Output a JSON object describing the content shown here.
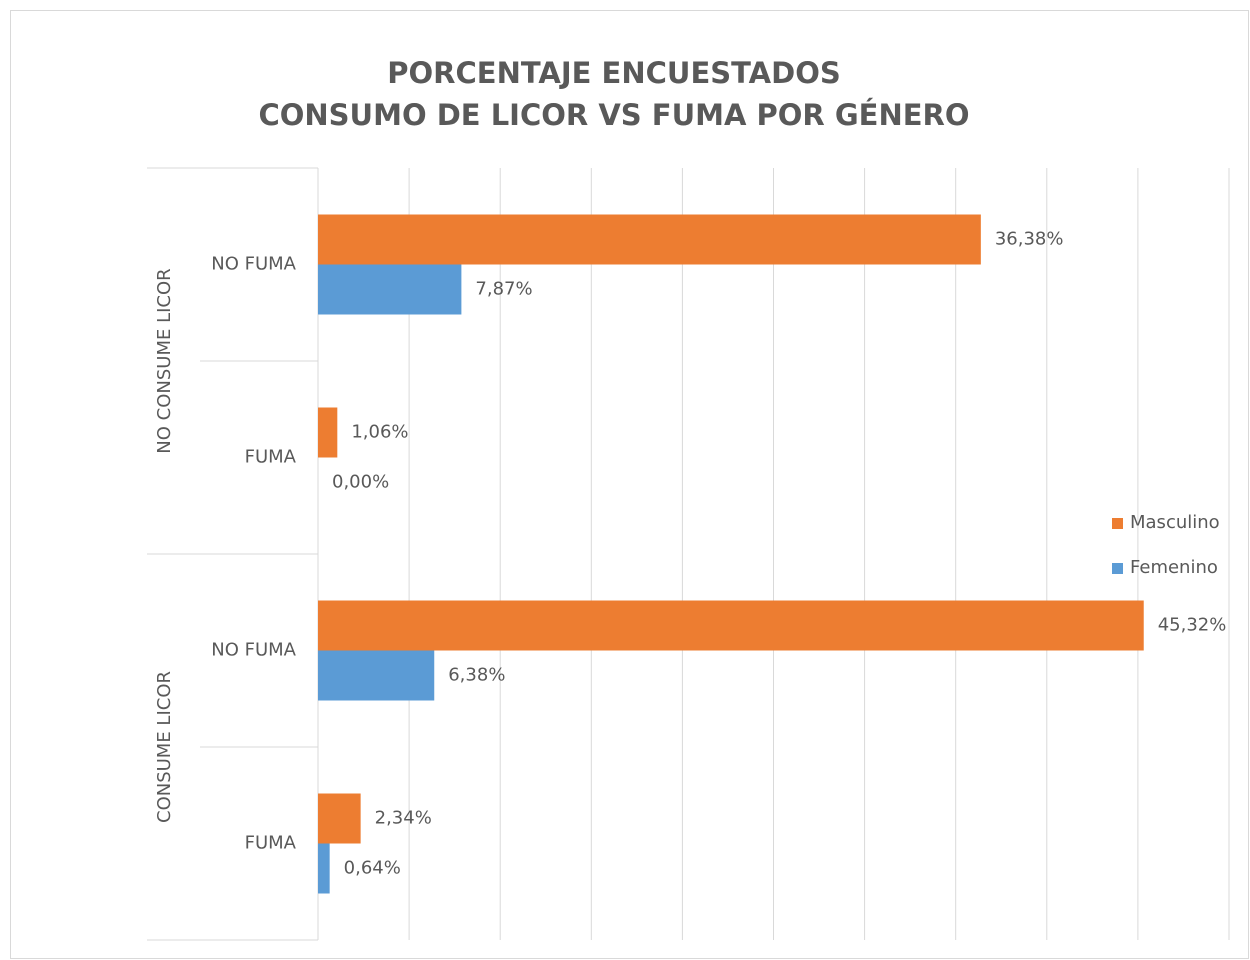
{
  "chart_data": {
    "type": "hbar",
    "title": [
      "PORCENTAJE ENCUESTADOS",
      "CONSUMO DE LICOR VS FUMA POR GÉNERO"
    ],
    "groups": [
      "NO CONSUME LICOR",
      "CONSUME LICOR"
    ],
    "categories": [
      "NO FUMA",
      "FUMA",
      "NO FUMA",
      "FUMA"
    ],
    "series": [
      {
        "name": "Masculino",
        "color": "#ed7d31",
        "values": [
          36.38,
          1.06,
          45.32,
          2.34
        ],
        "value_labels": [
          "36,38%",
          "1,06%",
          "45,32%",
          "2,34%"
        ]
      },
      {
        "name": "Femenino",
        "color": "#5b9bd5",
        "values": [
          7.87,
          0,
          6.38,
          0.64
        ],
        "value_labels": [
          "7,87%",
          "0,00%",
          "6,38%",
          "0,64%"
        ]
      }
    ],
    "xlim": [
      0,
      50
    ],
    "xticks": [
      0,
      5,
      10,
      15,
      20,
      25,
      30,
      35,
      40,
      45,
      50
    ],
    "grid": true,
    "legend": "right"
  }
}
